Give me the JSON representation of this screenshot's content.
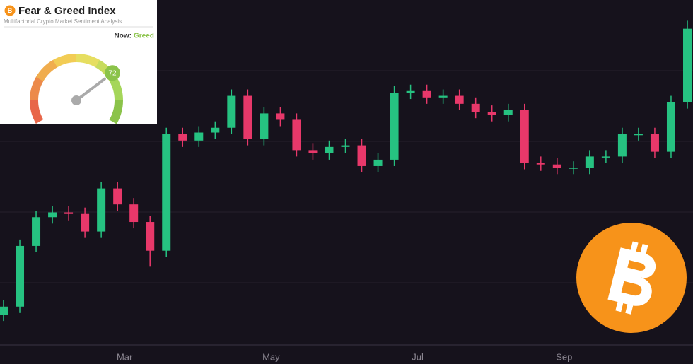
{
  "chart_data": {
    "type": "candlestick",
    "categories": [
      null,
      null,
      null,
      null,
      null,
      null,
      null,
      "Mar",
      null,
      null,
      null,
      null,
      null,
      null,
      null,
      null,
      "May",
      null,
      null,
      null,
      null,
      null,
      null,
      null,
      null,
      "Jul",
      null,
      null,
      null,
      null,
      null,
      null,
      null,
      null,
      "Sep",
      null,
      null,
      null,
      null,
      null,
      null,
      null,
      null
    ],
    "open": [
      16600,
      17100,
      20900,
      22700,
      23000,
      22900,
      21800,
      24500,
      23500,
      22400,
      20600,
      27900,
      27500,
      28000,
      28300,
      30300,
      27600,
      29200,
      28800,
      26900,
      26700,
      27100,
      27200,
      25900,
      26300,
      30500,
      30600,
      30200,
      30300,
      29800,
      29300,
      29100,
      29400,
      26100,
      26000,
      25800,
      25800,
      26500,
      26500,
      27900,
      27900,
      26800,
      29900
    ],
    "high": [
      17500,
      21300,
      23100,
      23400,
      23400,
      23300,
      24900,
      24900,
      23900,
      22800,
      28300,
      28300,
      28400,
      28700,
      30700,
      30700,
      29600,
      29600,
      29200,
      27300,
      27500,
      27600,
      27600,
      26700,
      30900,
      31000,
      31000,
      30700,
      30700,
      30200,
      29700,
      29800,
      29800,
      26500,
      26400,
      26200,
      26900,
      26900,
      28300,
      28300,
      28300,
      30300,
      35000
    ],
    "low": [
      16200,
      16700,
      20500,
      22300,
      22500,
      21400,
      21400,
      23100,
      22000,
      19600,
      20200,
      27100,
      27100,
      27600,
      27900,
      27200,
      27200,
      28400,
      26500,
      26300,
      26300,
      26700,
      25500,
      25500,
      25900,
      30100,
      29800,
      29800,
      29400,
      28900,
      28700,
      28700,
      25700,
      25600,
      25400,
      25400,
      25400,
      26100,
      26100,
      27500,
      26400,
      26400,
      29500
    ],
    "close": [
      17100,
      20900,
      22700,
      23000,
      22900,
      21800,
      24500,
      23500,
      22400,
      20600,
      27900,
      27500,
      28000,
      28300,
      30300,
      27600,
      29200,
      28800,
      26900,
      26700,
      27100,
      27200,
      25900,
      26300,
      30500,
      30600,
      30200,
      30300,
      29800,
      29300,
      29100,
      29400,
      26100,
      26000,
      25800,
      25800,
      26500,
      26500,
      27900,
      27900,
      26800,
      29900,
      34500
    ],
    "up_color": "#26c281",
    "down_color": "#e8386a",
    "ylim": [
      14700,
      36300
    ]
  },
  "gauge": {
    "title": "Fear & Greed Index",
    "subtitle": "Multifactorial Crypto Market Sentiment Analysis",
    "now_label": "Now:",
    "status": "Greed",
    "status_color": "#8bc34a",
    "value": 72,
    "range": [
      0,
      100
    ]
  }
}
